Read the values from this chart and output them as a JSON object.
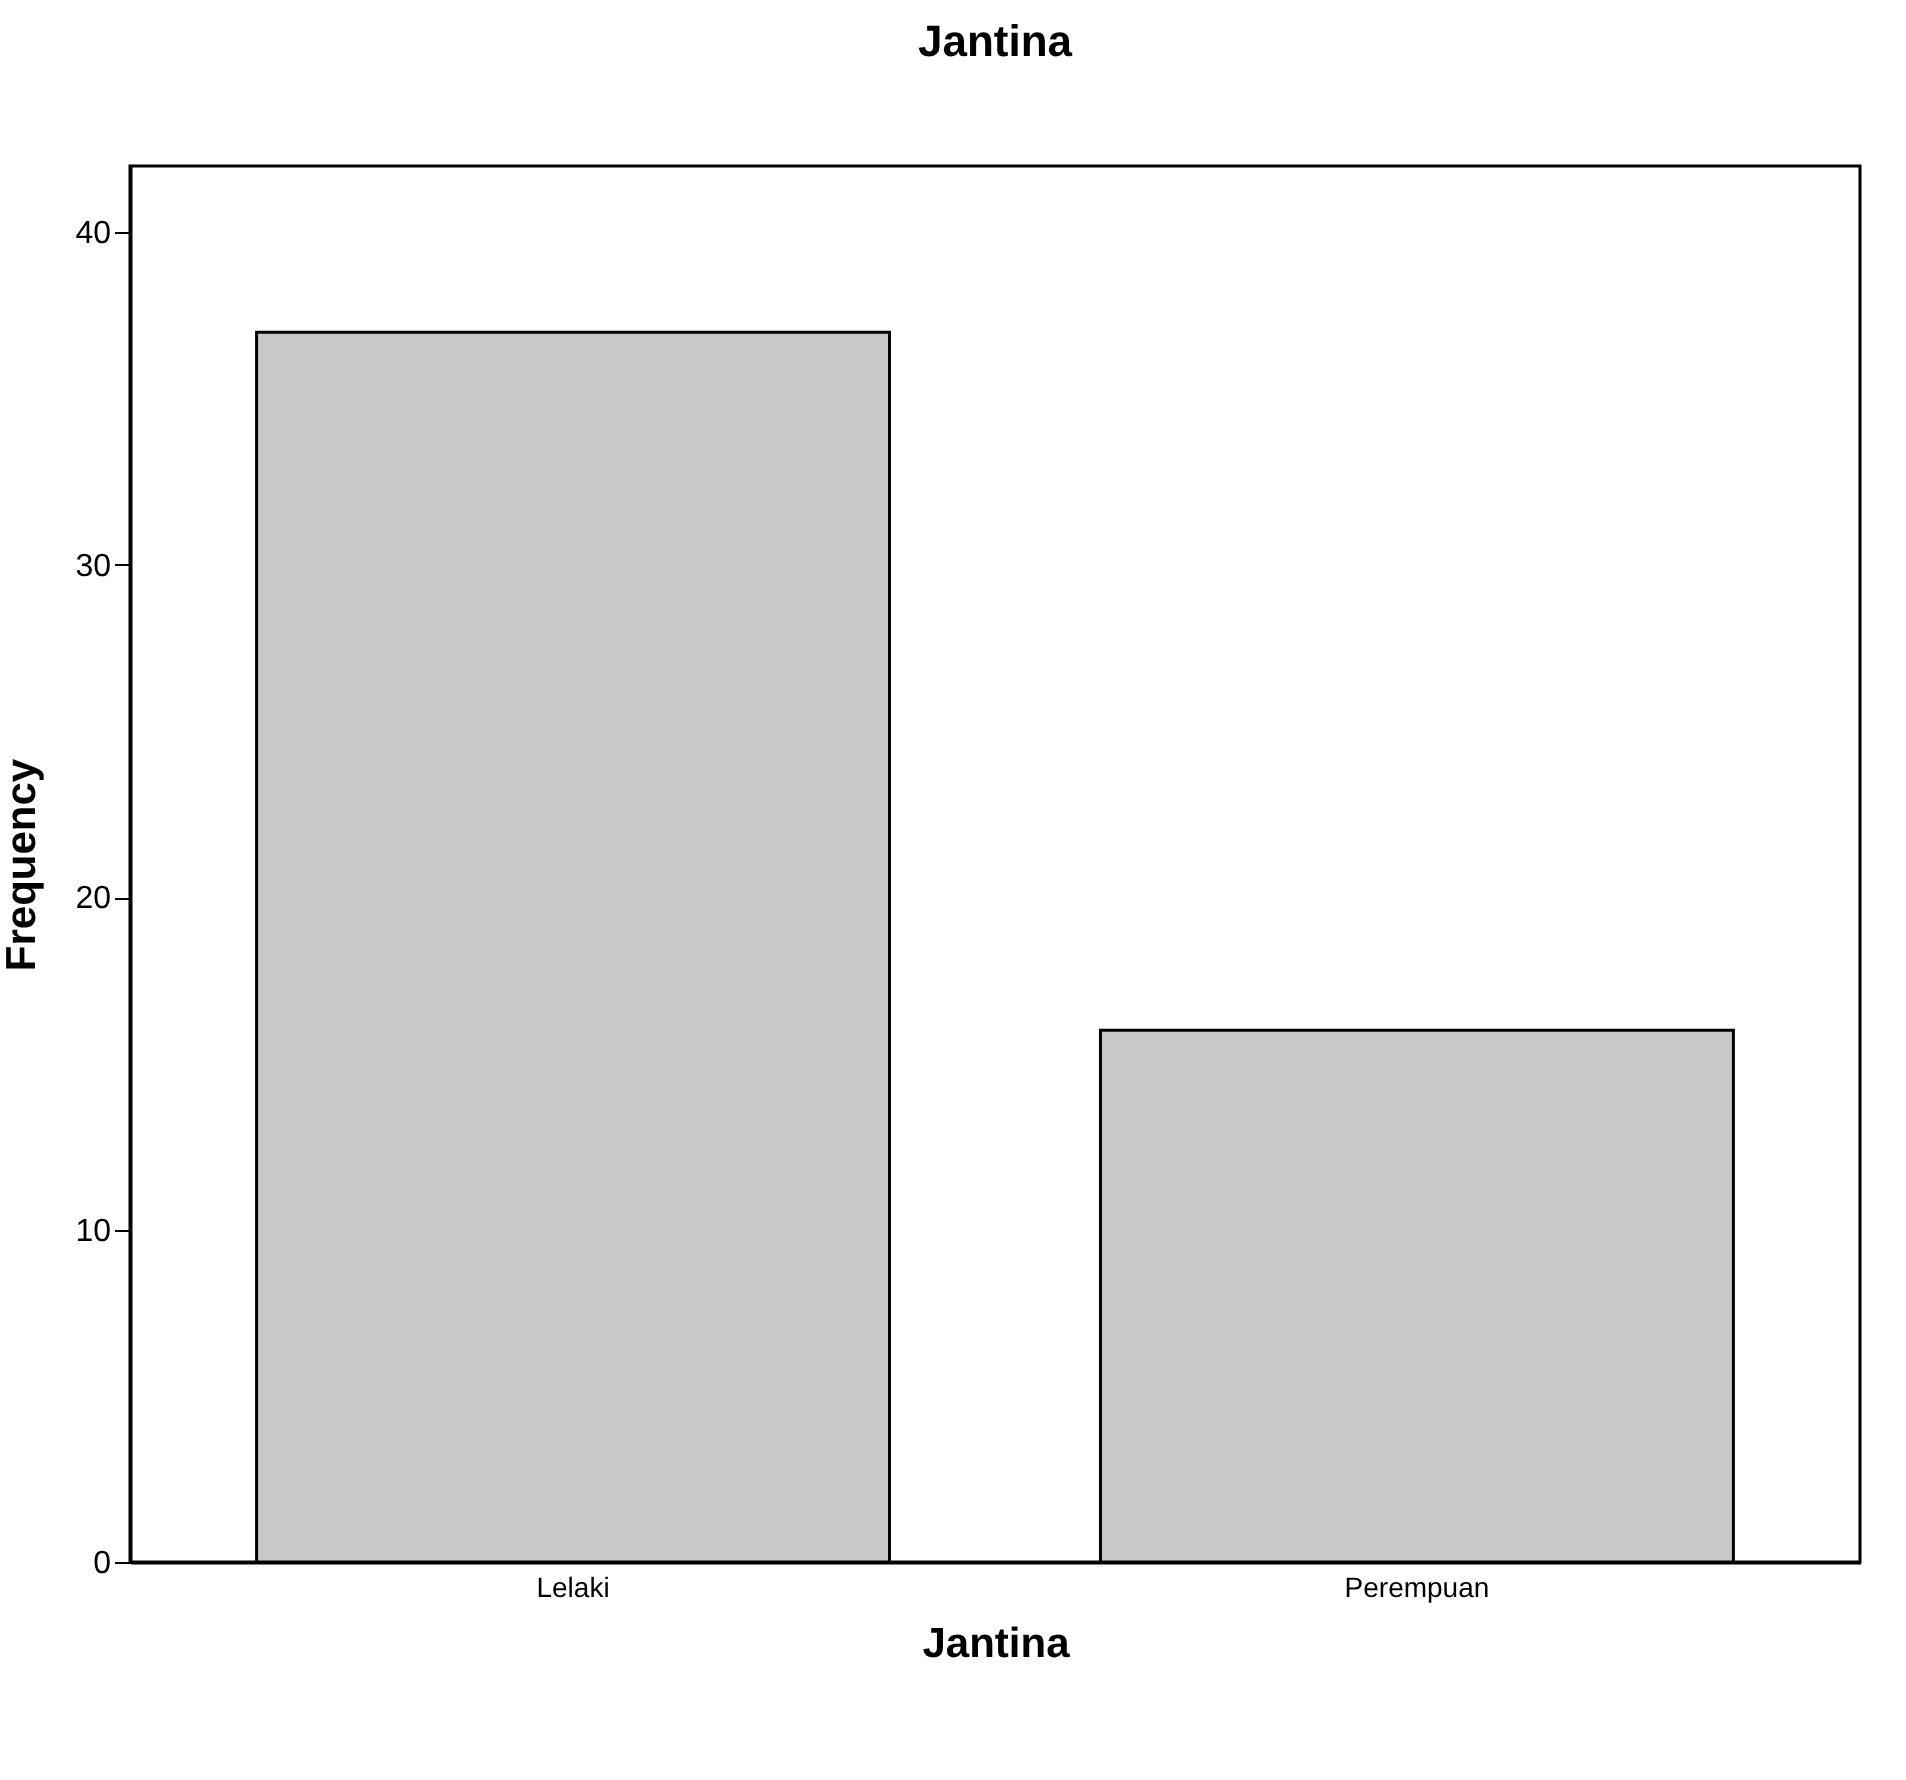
{
  "chart_data": {
    "type": "bar",
    "title": "Jantina",
    "xlabel": "Jantina",
    "ylabel": "Frequency",
    "categories": [
      "Lelaki",
      "Perempuan"
    ],
    "values": [
      37,
      16
    ],
    "color": "#c8c8c8",
    "ylim": [
      0,
      42
    ],
    "yticks": [
      0,
      10,
      20,
      30,
      40
    ],
    "grid": false
  }
}
